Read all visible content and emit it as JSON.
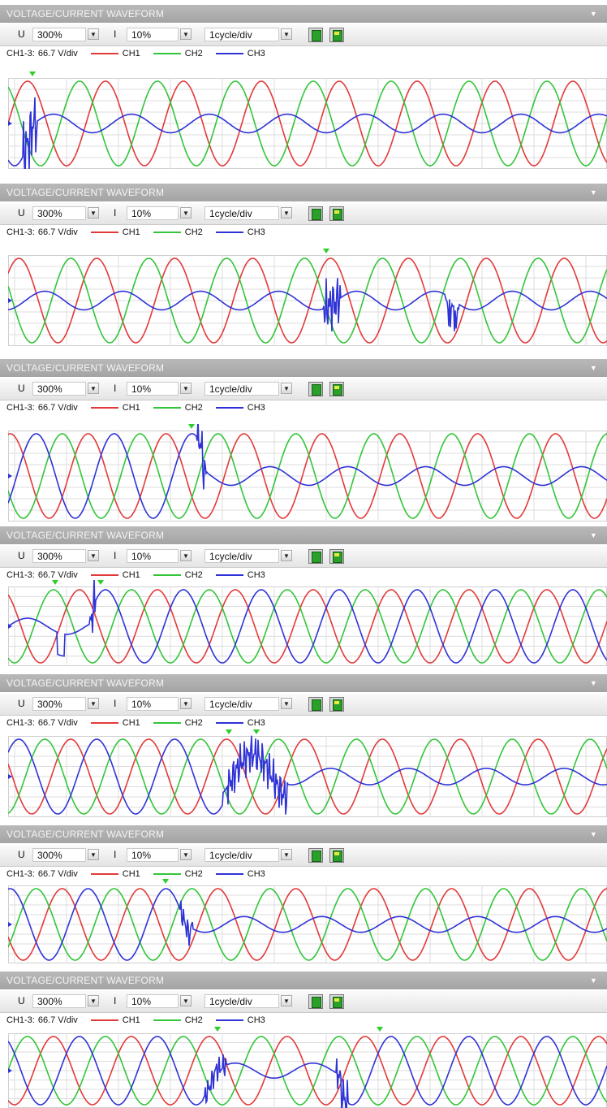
{
  "panel_title": "VOLTAGE/CURRENT WAVEFORM",
  "toolbar": {
    "u_label": "U",
    "u_value": "300%",
    "i_label": "I",
    "i_value": "10%",
    "time_value": "1cycle/div"
  },
  "legend": {
    "scale_label": "CH1-3:",
    "scale_value": "66.7 V/div",
    "ch1": "CH1",
    "ch2": "CH2",
    "ch3": "CH3"
  },
  "colors": {
    "ch1": "#e23a3a",
    "ch2": "#33c53a",
    "ch3": "#2f33d6",
    "grid": "#dcdcdc",
    "trigger": "#2bcf2b"
  },
  "icons": [
    "collapse-arrow-icon",
    "dropdown-arrow-icon",
    "export-icon",
    "settings-icon",
    "trigger-marker-icon"
  ],
  "chart_data": [
    {
      "type": "line",
      "series": [
        {
          "name": "CH1"
        },
        {
          "name": "CH2"
        },
        {
          "name": "CH3"
        }
      ],
      "event": "ch3-transient-then-reduced-amplitude",
      "triggers": 1
    },
    {
      "type": "line",
      "series": [
        {
          "name": "CH1"
        },
        {
          "name": "CH2"
        },
        {
          "name": "CH3"
        }
      ],
      "event": "ch3-reduced-amplitude-with-two-spikes",
      "triggers": 1
    },
    {
      "type": "line",
      "series": [
        {
          "name": "CH1"
        },
        {
          "name": "CH2"
        },
        {
          "name": "CH3"
        }
      ],
      "event": "ch3-full-then-reduced-amplitude",
      "triggers": 1
    },
    {
      "type": "line",
      "series": [
        {
          "name": "CH1"
        },
        {
          "name": "CH2"
        },
        {
          "name": "CH3"
        }
      ],
      "event": "ch3-reduced-then-recovery-to-full",
      "triggers": 2
    },
    {
      "type": "line",
      "series": [
        {
          "name": "CH1"
        },
        {
          "name": "CH2"
        },
        {
          "name": "CH3"
        }
      ],
      "event": "ch3-full-then-noisy-then-reduced",
      "triggers": 2
    },
    {
      "type": "line",
      "series": [
        {
          "name": "CH1"
        },
        {
          "name": "CH2"
        },
        {
          "name": "CH3"
        }
      ],
      "event": "ch3-full-then-reduced-amplitude",
      "triggers": 1
    },
    {
      "type": "line",
      "series": [
        {
          "name": "CH1"
        },
        {
          "name": "CH2"
        },
        {
          "name": "CH3"
        }
      ],
      "event": "ch3-full-reduced-then-recovery",
      "triggers": 2
    }
  ]
}
